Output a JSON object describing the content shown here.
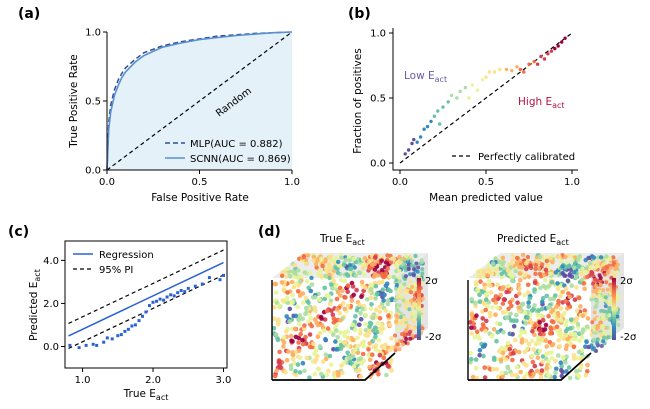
{
  "panels": {
    "a": {
      "label": "(a)"
    },
    "b": {
      "label": "(b)"
    },
    "c": {
      "label": "(c)"
    },
    "d": {
      "label": "(d)"
    }
  },
  "chart_data": [
    {
      "id": "a",
      "type": "line",
      "xlabel": "False Positive Rate",
      "ylabel": "True Positive Rate",
      "xlim": [
        0,
        1
      ],
      "ylim": [
        0,
        1
      ],
      "xticks": [
        "0.0",
        "0.5",
        "1.0"
      ],
      "yticks": [
        "0.0",
        "0.5",
        "1.0"
      ],
      "random_label": "Random",
      "legend": "bottom-right",
      "series": [
        {
          "name": "MLP(AUC = 0.882)",
          "style": "dashed",
          "color": "#2a4f9c",
          "x": [
            0,
            0.01,
            0.02,
            0.04,
            0.06,
            0.08,
            0.1,
            0.15,
            0.2,
            0.3,
            0.4,
            0.5,
            0.6,
            0.7,
            0.8,
            0.9,
            1.0
          ],
          "y": [
            0,
            0.35,
            0.47,
            0.58,
            0.65,
            0.7,
            0.74,
            0.8,
            0.85,
            0.9,
            0.93,
            0.95,
            0.97,
            0.98,
            0.99,
            0.995,
            1.0
          ]
        },
        {
          "name": "SCNN(AUC = 0.869)",
          "style": "solid",
          "color": "#5b8fd0",
          "x": [
            0,
            0.01,
            0.02,
            0.04,
            0.06,
            0.08,
            0.1,
            0.15,
            0.2,
            0.3,
            0.4,
            0.5,
            0.6,
            0.7,
            0.8,
            0.9,
            1.0
          ],
          "y": [
            0,
            0.3,
            0.42,
            0.54,
            0.61,
            0.67,
            0.71,
            0.78,
            0.83,
            0.89,
            0.92,
            0.945,
            0.96,
            0.975,
            0.985,
            0.995,
            1.0
          ]
        }
      ]
    },
    {
      "id": "b",
      "type": "scatter",
      "xlabel": "Mean predicted value",
      "ylabel": "Fraction of positives",
      "xlim": [
        0,
        1
      ],
      "ylim": [
        0,
        1
      ],
      "xticks": [
        "0.0",
        "0.5",
        "1.0"
      ],
      "yticks": [
        "0.0",
        "0.5",
        "1.0"
      ],
      "legend": "Perfectly calibrated",
      "annotations": {
        "low": "Low E",
        "high": "High E",
        "sub": "act"
      },
      "points": [
        [
          0.03,
          0.07
        ],
        [
          0.05,
          0.1
        ],
        [
          0.07,
          0.15
        ],
        [
          0.08,
          0.18
        ],
        [
          0.1,
          0.16
        ],
        [
          0.12,
          0.2
        ],
        [
          0.14,
          0.26
        ],
        [
          0.16,
          0.28
        ],
        [
          0.18,
          0.32
        ],
        [
          0.2,
          0.36
        ],
        [
          0.22,
          0.4
        ],
        [
          0.23,
          0.3
        ],
        [
          0.25,
          0.43
        ],
        [
          0.28,
          0.47
        ],
        [
          0.3,
          0.52
        ],
        [
          0.33,
          0.5
        ],
        [
          0.35,
          0.55
        ],
        [
          0.38,
          0.58
        ],
        [
          0.4,
          0.5
        ],
        [
          0.42,
          0.6
        ],
        [
          0.45,
          0.56
        ],
        [
          0.48,
          0.64
        ],
        [
          0.5,
          0.66
        ],
        [
          0.52,
          0.7
        ],
        [
          0.55,
          0.7
        ],
        [
          0.58,
          0.72
        ],
        [
          0.62,
          0.72
        ],
        [
          0.65,
          0.71
        ],
        [
          0.68,
          0.74
        ],
        [
          0.7,
          0.72
        ],
        [
          0.72,
          0.7
        ],
        [
          0.75,
          0.76
        ],
        [
          0.78,
          0.78
        ],
        [
          0.8,
          0.76
        ],
        [
          0.82,
          0.82
        ],
        [
          0.84,
          0.8
        ],
        [
          0.86,
          0.84
        ],
        [
          0.88,
          0.86
        ],
        [
          0.9,
          0.88
        ],
        [
          0.92,
          0.9
        ],
        [
          0.94,
          0.93
        ],
        [
          0.96,
          0.96
        ]
      ]
    },
    {
      "id": "c",
      "type": "scatter",
      "xlabel": "True E",
      "ylabel": "Predicted E",
      "sub": "act",
      "xlim": [
        0.75,
        3.05
      ],
      "ylim": [
        -1.0,
        4.9
      ],
      "xticks": [
        "1.0",
        "2.0",
        "3.0"
      ],
      "yticks": [
        "0.0",
        "2.0",
        "4.0"
      ],
      "legend": "top-left",
      "series": [
        {
          "name": "Regression",
          "color": "#2a62d6",
          "slope": 1.55,
          "intercept": -0.75
        },
        {
          "name": "95% PI",
          "color": "#000000",
          "style": "dashed",
          "offset": 0.58
        }
      ],
      "points": [
        [
          0.82,
          0.05
        ],
        [
          0.95,
          -0.05
        ],
        [
          1.05,
          0.05
        ],
        [
          1.15,
          0.1
        ],
        [
          1.2,
          0.05
        ],
        [
          1.3,
          0.2
        ],
        [
          1.35,
          0.4
        ],
        [
          1.42,
          0.35
        ],
        [
          1.5,
          0.5
        ],
        [
          1.55,
          0.55
        ],
        [
          1.6,
          0.7
        ],
        [
          1.65,
          0.8
        ],
        [
          1.7,
          0.95
        ],
        [
          1.75,
          1.0
        ],
        [
          1.8,
          1.2
        ],
        [
          1.85,
          1.4
        ],
        [
          1.9,
          1.6
        ],
        [
          1.95,
          1.9
        ],
        [
          2.0,
          2.05
        ],
        [
          2.05,
          2.1
        ],
        [
          2.1,
          2.2
        ],
        [
          2.15,
          2.15
        ],
        [
          2.2,
          2.3
        ],
        [
          2.25,
          2.4
        ],
        [
          2.3,
          2.35
        ],
        [
          2.35,
          2.5
        ],
        [
          2.4,
          2.6
        ],
        [
          2.45,
          2.55
        ],
        [
          2.5,
          2.7
        ],
        [
          2.6,
          2.8
        ],
        [
          2.7,
          2.9
        ],
        [
          2.8,
          3.2
        ],
        [
          2.95,
          3.1
        ],
        [
          3.0,
          3.3
        ]
      ]
    },
    {
      "id": "d",
      "type": "heatmap",
      "cubes": [
        {
          "title": "True E",
          "sub": "act"
        },
        {
          "title": "Predicted E",
          "sub": "act"
        }
      ],
      "colorbar": {
        "max": "2σ",
        "min": "-2σ"
      }
    }
  ]
}
